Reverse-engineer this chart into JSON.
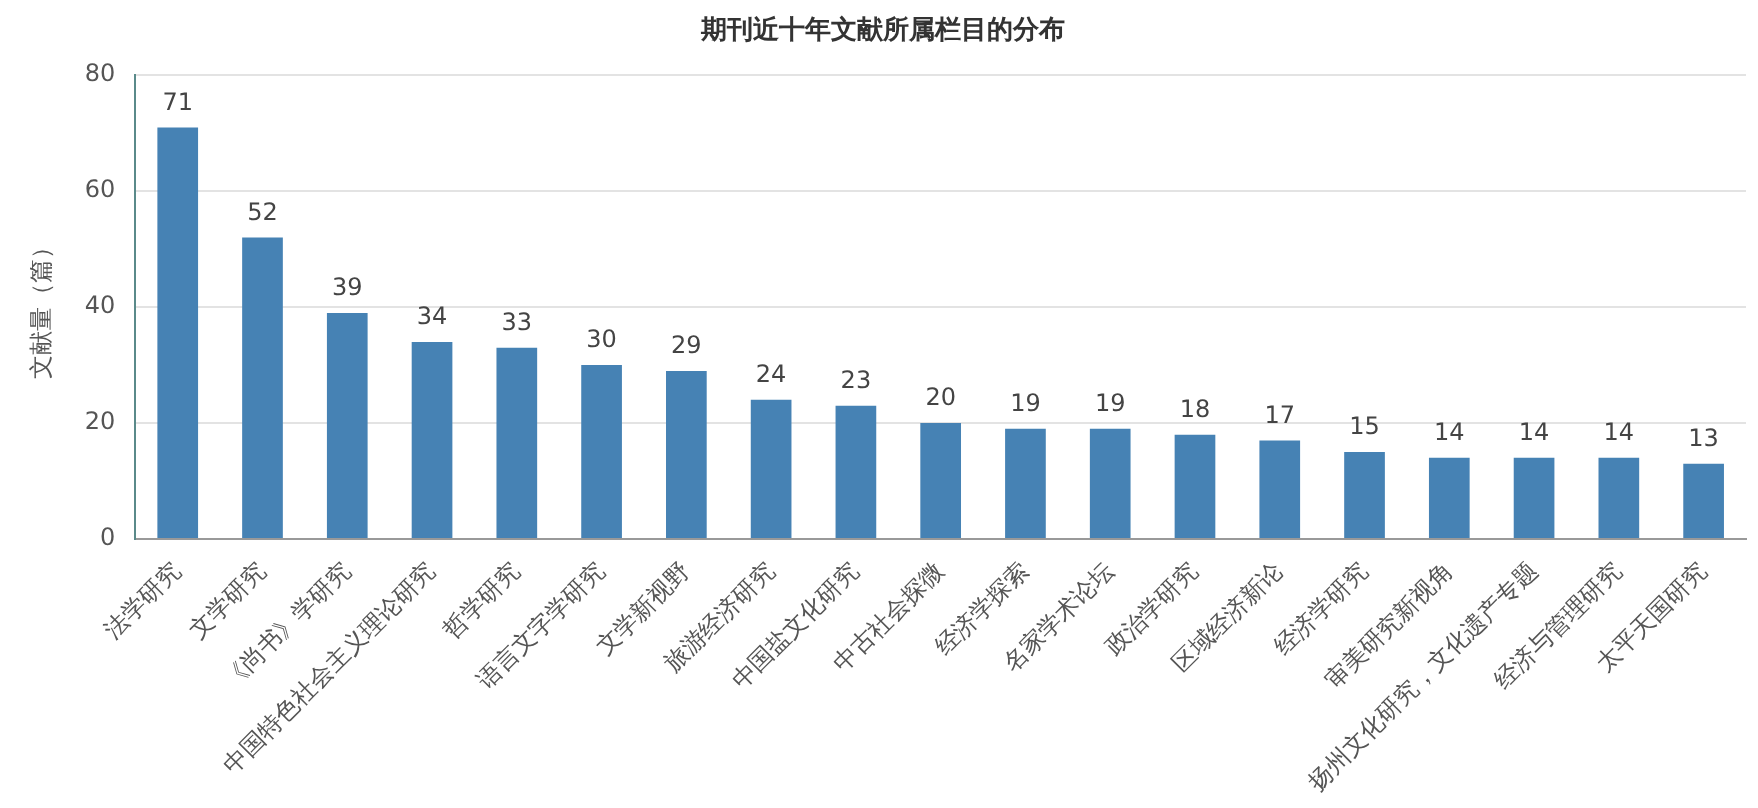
{
  "chart_data": {
    "type": "bar",
    "title": "期刊近十年文献所属栏目的分布",
    "ylabel": "文献量（篇）",
    "categories": [
      "法学研究",
      "文学研究",
      "《尚书》学研究",
      "中国特色社会主义理论研究",
      "哲学研究",
      "语言文字学研究",
      "文学新视野",
      "旅游经济研究",
      "中国盐文化研究",
      "中古社会探微",
      "经济学探索",
      "名家学术论坛",
      "政治学研究",
      "区域经济新论",
      "经济学研究",
      "审美研究新视角",
      "扬州文化研究，文化遗产专题",
      "经济与管理研究",
      "太平天国研究"
    ],
    "values": [
      71,
      52,
      39,
      34,
      33,
      30,
      29,
      24,
      23,
      20,
      19,
      19,
      18,
      17,
      15,
      14,
      14,
      14,
      13
    ],
    "color": "#4682b4",
    "ylim": [
      0,
      80
    ],
    "yticks": [
      0,
      20,
      40,
      60,
      80
    ],
    "grid": "y",
    "legend": false,
    "data_labels": true
  }
}
